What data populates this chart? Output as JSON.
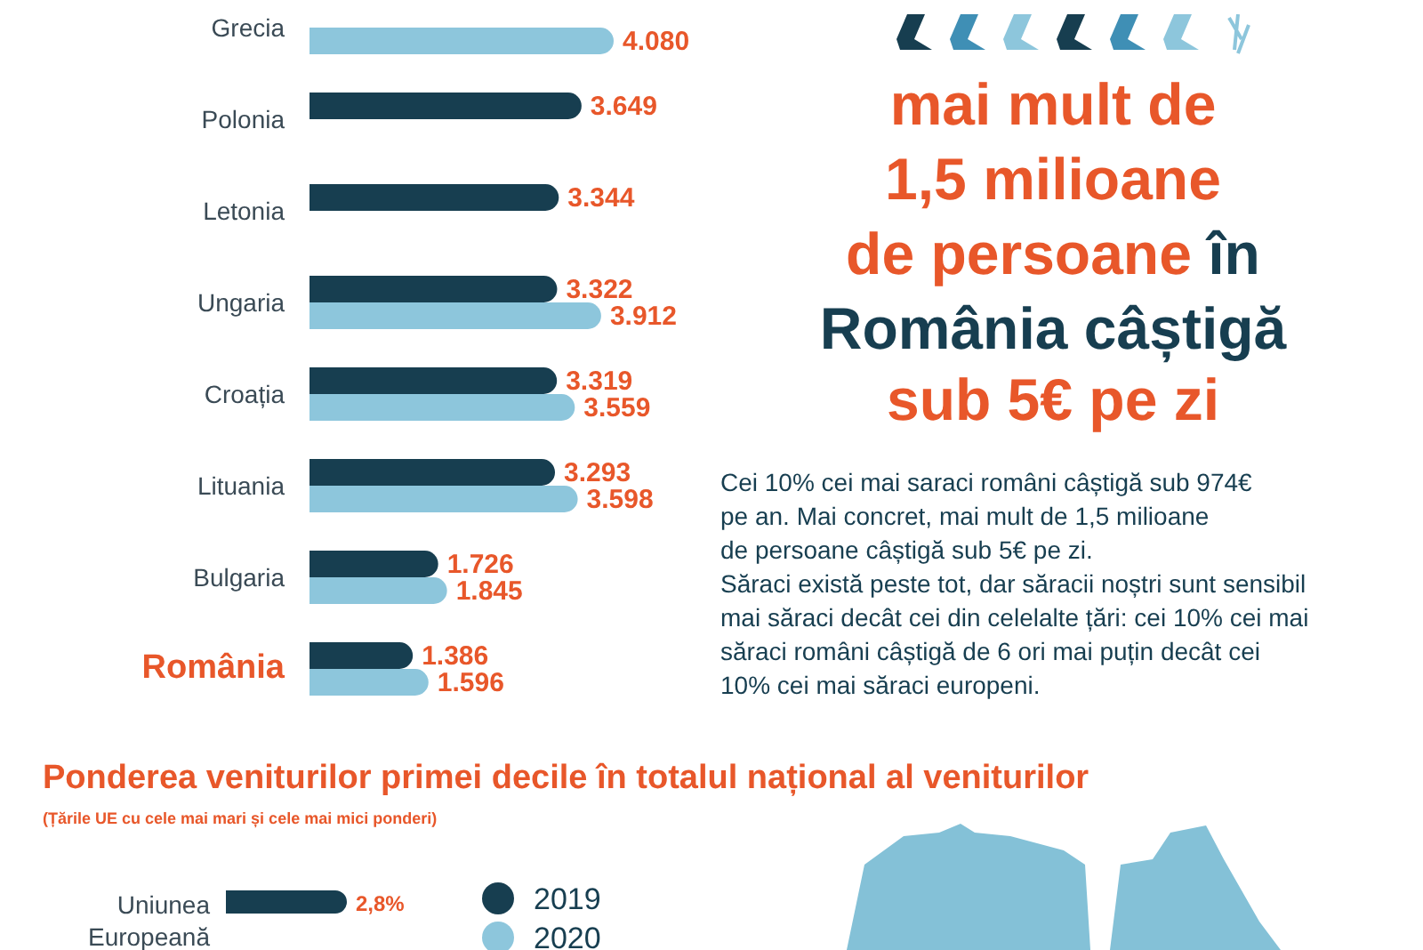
{
  "chart_data": [
    {
      "type": "bar",
      "orientation": "horizontal",
      "legend": false,
      "categories": [
        "Grecia",
        "Polonia",
        "Letonia",
        "Ungaria",
        "Croația",
        "Lituania",
        "Bulgaria",
        "România"
      ],
      "series": [
        {
          "color": "#173e50",
          "values": [
            null,
            3649,
            3344,
            3322,
            3319,
            3293,
            1726,
            1386
          ],
          "value_labels": [
            null,
            "3.649",
            "3.344",
            "3.322",
            "3.319",
            "3.293",
            "1.726",
            "1.386"
          ]
        },
        {
          "color": "#8dc6dc",
          "values": [
            4080,
            null,
            null,
            3912,
            3559,
            3598,
            1845,
            1596
          ],
          "value_labels": [
            "4.080",
            null,
            null,
            "3.912",
            "3.559",
            "3.598",
            "1.845",
            "1.596"
          ]
        }
      ],
      "annotations": [
        "mai mult de",
        "1,5 milioane",
        "de persoane",
        "în",
        "România câștigă",
        "sub 5€ pe zi",
        "Cei 10% cei mai saraci români câștigă sub 974€",
        "pe an. Mai concret, mai mult de 1,5 milioane",
        "de persoane câștigă sub 5€ pe zi.",
        "Săraci există peste tot, dar săracii noștri sunt sensibil",
        "mai săraci decât cei din celelalte țări: cei 10% cei mai",
        "săraci români câștigă de 6 ori mai puțin decât cei",
        "10% cei mai săraci europeni."
      ]
    },
    {
      "type": "bar",
      "orientation": "horizontal",
      "legend": "right",
      "title": "Ponderea veniturilor primei decile în totalul național al veniturilor",
      "subtitle": "(Țările UE cu cele mai mari și cele mai mici ponderi)",
      "categories": [
        "Uniunea Europeană"
      ],
      "series": [
        {
          "name": "2019",
          "color": "#173e50",
          "values": [
            2.8
          ],
          "value_labels": [
            "2,8%"
          ]
        },
        {
          "name": "2020",
          "color": "#8dc6dc",
          "values": [
            null
          ],
          "value_labels": [
            null
          ]
        }
      ]
    }
  ]
}
